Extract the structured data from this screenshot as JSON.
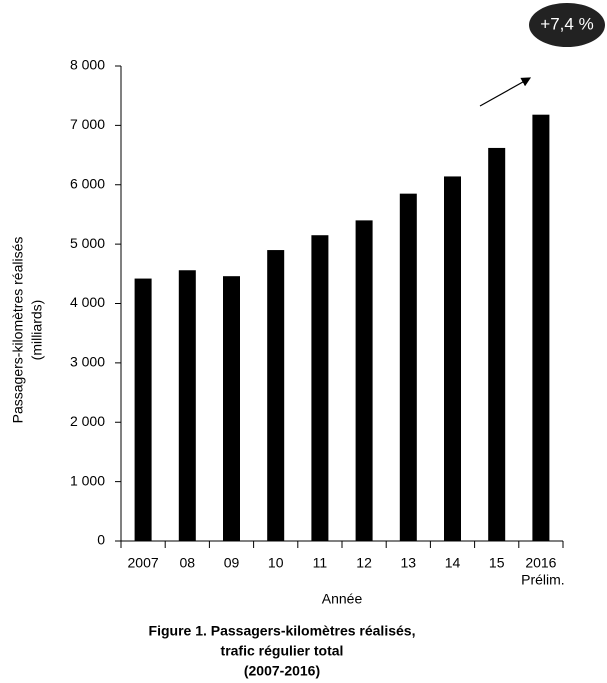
{
  "chart_data": {
    "type": "bar",
    "title": [
      "Figure 1. Passagers-kilomètres réalisés,",
      "trafic régulier total",
      "(2007-2016)"
    ],
    "y_label": [
      "Passagers-kilomètres réalisés",
      "(milliards)"
    ],
    "x_label": "Année",
    "categories": [
      "2007",
      "08",
      "09",
      "10",
      "11",
      "12",
      "13",
      "14",
      "15",
      "2016"
    ],
    "category_note": "Prélim.",
    "values": [
      4420,
      4560,
      4460,
      4900,
      5150,
      5400,
      5850,
      6140,
      6620,
      7180
    ],
    "color": "#000000",
    "ylim": [
      0,
      8000
    ],
    "yticks": [
      0,
      {
        "value": 1000,
        "label": "1 000"
      },
      {
        "value": 2000,
        "label": "2 000"
      },
      {
        "value": 3000,
        "label": "3 000"
      },
      {
        "value": 4000,
        "label": "4 000"
      },
      {
        "value": 5000,
        "label": "5 000"
      },
      {
        "value": 6000,
        "label": "6 000"
      },
      {
        "value": 7000,
        "label": "7 000"
      },
      {
        "value": 8000,
        "label": "8 000"
      }
    ],
    "annotation": "+7,4 %",
    "grid": false
  }
}
